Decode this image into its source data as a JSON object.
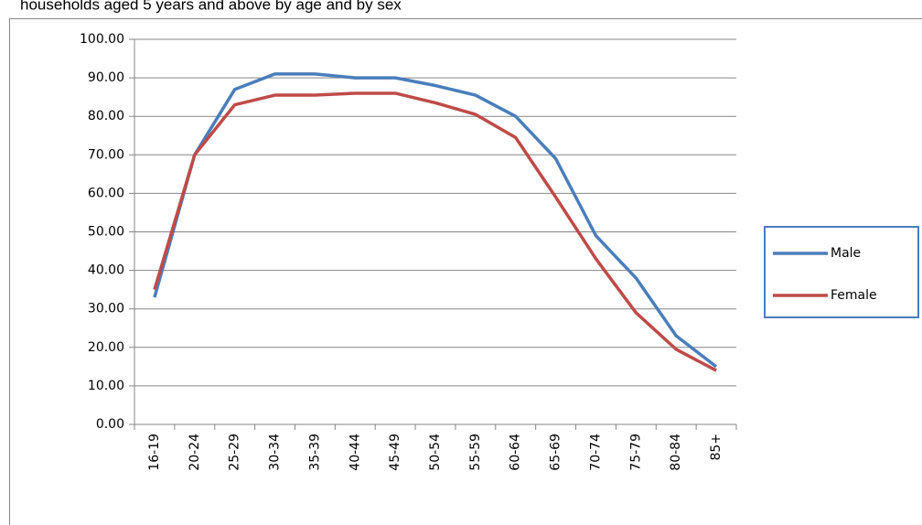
{
  "chart_data": {
    "type": "line",
    "title": "households aged 5 years and above by age and by sex",
    "categories": [
      "16-19",
      "20-24",
      "25-29",
      "30-34",
      "35-39",
      "40-44",
      "45-49",
      "50-54",
      "55-59",
      "60-64",
      "65-69",
      "70-74",
      "75-79",
      "80-84",
      "85+"
    ],
    "series": [
      {
        "name": "Male",
        "color": "#4a7ebb",
        "values": [
          33,
          70,
          87,
          91,
          91,
          90,
          90,
          88,
          85.5,
          80,
          69,
          49,
          38,
          23,
          15
        ]
      },
      {
        "name": "Female",
        "color": "#be4b48",
        "values": [
          35,
          70,
          83,
          85.5,
          85.5,
          86,
          86,
          83.5,
          80.5,
          74.5,
          59,
          43,
          29,
          19.5,
          14
        ]
      }
    ],
    "ylim": [
      0,
      100
    ],
    "yticks": [
      {
        "value": 0,
        "label": "0.00"
      },
      {
        "value": 10,
        "label": "10.00"
      },
      {
        "value": 20,
        "label": "20.00"
      },
      {
        "value": 30,
        "label": "30.00"
      },
      {
        "value": 40,
        "label": "40.00"
      },
      {
        "value": 50,
        "label": "50.00"
      },
      {
        "value": 60,
        "label": "60.00"
      },
      {
        "value": 70,
        "label": "70.00"
      },
      {
        "value": 80,
        "label": "80.00"
      },
      {
        "value": 90,
        "label": "90.00"
      },
      {
        "value": 100,
        "label": "100.00"
      }
    ],
    "grid": true,
    "legend": "right"
  }
}
